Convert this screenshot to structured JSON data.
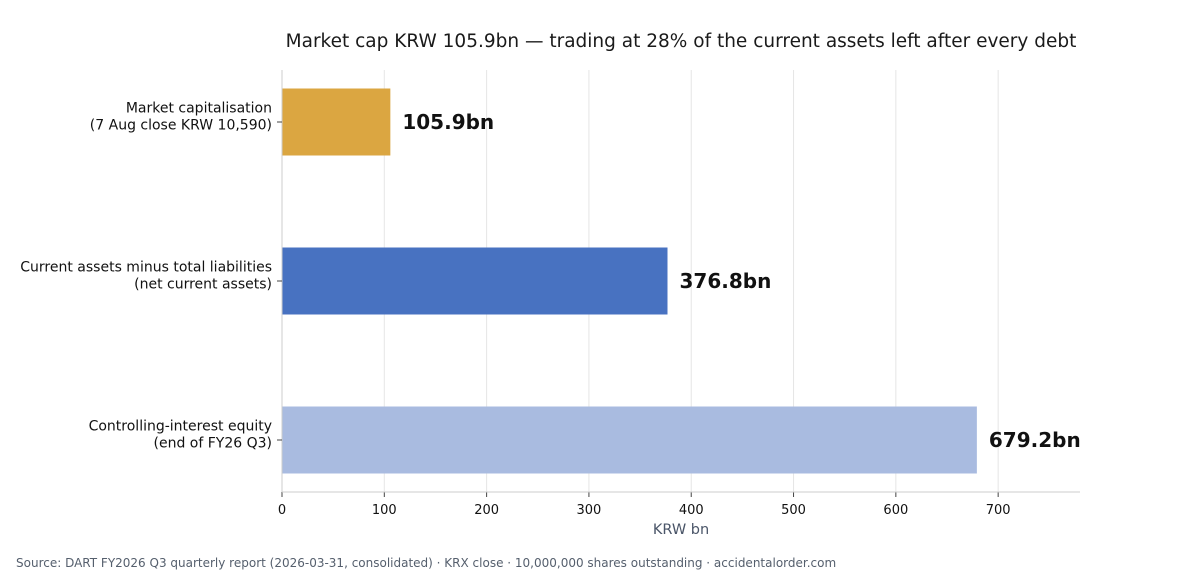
{
  "chart_data": {
    "type": "bar",
    "orientation": "horizontal",
    "title": "Market cap KRW 105.9bn — trading at 28% of the current assets left after every debt",
    "xlabel": "KRW bn",
    "ylabel": "",
    "xlim": [
      0,
      780
    ],
    "xticks": [
      0,
      100,
      200,
      300,
      400,
      500,
      600,
      700
    ],
    "grid": "x",
    "categories": [
      [
        "Market capitalisation",
        "(7 Aug close KRW 10,590)"
      ],
      [
        "Current assets minus total liabilities",
        "(net current assets)"
      ],
      [
        "Controlling-interest equity",
        "(end of FY26 Q3)"
      ]
    ],
    "values": [
      105.9,
      376.8,
      679.2
    ],
    "data_labels": [
      "105.9bn",
      "376.8bn",
      "679.2bn"
    ],
    "colors": [
      "#dba641",
      "#4872c1",
      "#a9bbe0"
    ]
  },
  "footer": {
    "source": "Source: DART FY2026 Q3 quarterly report (2026-03-31, consolidated) · KRX close · 10,000,000 shares outstanding · accidentalorder.com"
  }
}
